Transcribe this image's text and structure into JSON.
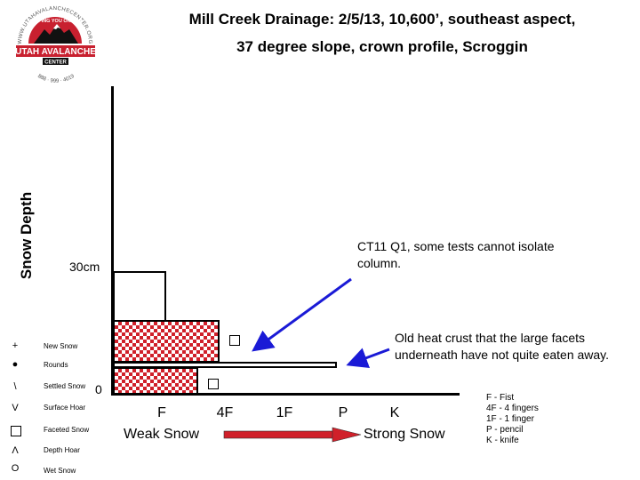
{
  "title": {
    "line1": "Mill Creek Drainage:  2/5/13, 10,600’, southeast aspect,",
    "line2": "37 degree slope, crown profile, Scroggin"
  },
  "logo": {
    "top_arc": "WWW.UTAHAVALANCHECENTER.ORG",
    "motto": "KEEPING YOU ON TOP",
    "name": "UTAH AVALANCHE",
    "sub": "CENTER",
    "phone": "888 · 999 · 4019",
    "colors": {
      "red": "#c8202f",
      "black": "#111111"
    }
  },
  "y_axis": {
    "label": "Snow Depth",
    "tick_30": "30cm",
    "tick_0": "0"
  },
  "x_axis": {
    "ticks": [
      "F",
      "4F",
      "1F",
      "P",
      "K"
    ],
    "weak_label": "Weak Snow",
    "strong_label": "Strong Snow",
    "arrow_color": "#d0202a"
  },
  "legend": [
    {
      "symbol": "+",
      "label": "New Snow"
    },
    {
      "symbol": "●",
      "label": "Rounds"
    },
    {
      "symbol": "\\",
      "label": "Settled Snow"
    },
    {
      "symbol": "V",
      "label": "Surface Hoar"
    },
    {
      "symbol": "□",
      "label": "Faceted Snow"
    },
    {
      "symbol": "Λ",
      "label": "Depth Hoar"
    },
    {
      "symbol": "O",
      "label": "Wet Snow"
    }
  ],
  "hardness_key": [
    "F - Fist",
    "4F - 4 fingers",
    "1F - 1 finger",
    "P - pencil",
    "K - knife"
  ],
  "annotations": {
    "ct": "CT11 Q1, some tests cannot isolate column.",
    "crust": "Old heat crust that the large facets underneath have not quite eaten away."
  },
  "colors": {
    "facet_fill": "#d0202a",
    "arrow_blue": "#1a1ad6"
  }
}
